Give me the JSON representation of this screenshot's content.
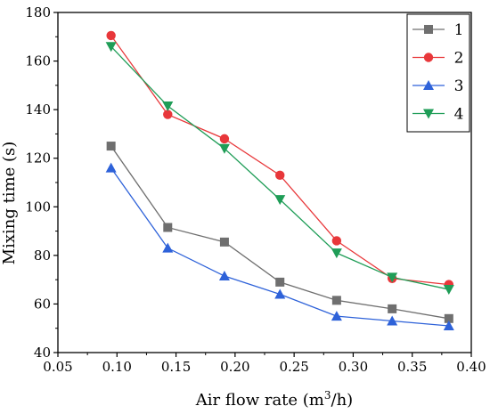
{
  "chart_data": {
    "type": "line",
    "xlabel": "Air flow rate (m",
    "xlabel_sup": "3",
    "xlabel_suffix": "/h)",
    "ylabel": "Mixing time (s)",
    "xlim": [
      0.05,
      0.4
    ],
    "ylim": [
      40,
      180
    ],
    "xticks": [
      0.05,
      0.1,
      0.15,
      0.2,
      0.25,
      0.3,
      0.35,
      0.4
    ],
    "xtick_labels": [
      "0.05",
      "0.10",
      "0.15",
      "0.20",
      "0.25",
      "0.30",
      "0.35",
      "0.40"
    ],
    "yticks": [
      40,
      60,
      80,
      100,
      120,
      140,
      160,
      180
    ],
    "ytick_labels": [
      "40",
      "60",
      "80",
      "100",
      "120",
      "140",
      "160",
      "180"
    ],
    "grid": false,
    "legend_position": "top-right",
    "x": [
      0.095,
      0.143,
      0.191,
      0.238,
      0.286,
      0.333,
      0.381
    ],
    "series": [
      {
        "name": "1",
        "marker": "square",
        "color": "#6f6f6f",
        "values": [
          125,
          91.5,
          85.5,
          69,
          61.5,
          58,
          54
        ]
      },
      {
        "name": "2",
        "marker": "circle",
        "color": "#e8373a",
        "values": [
          170.5,
          138,
          128,
          113,
          86,
          70.5,
          68
        ]
      },
      {
        "name": "3",
        "marker": "triangle-up",
        "color": "#2e62d9",
        "values": [
          116,
          83,
          71.5,
          64,
          55,
          53,
          51
        ]
      },
      {
        "name": "4",
        "marker": "triangle-down",
        "color": "#1f9d57",
        "values": [
          166,
          141.5,
          124,
          103,
          81,
          71,
          66
        ]
      }
    ]
  }
}
